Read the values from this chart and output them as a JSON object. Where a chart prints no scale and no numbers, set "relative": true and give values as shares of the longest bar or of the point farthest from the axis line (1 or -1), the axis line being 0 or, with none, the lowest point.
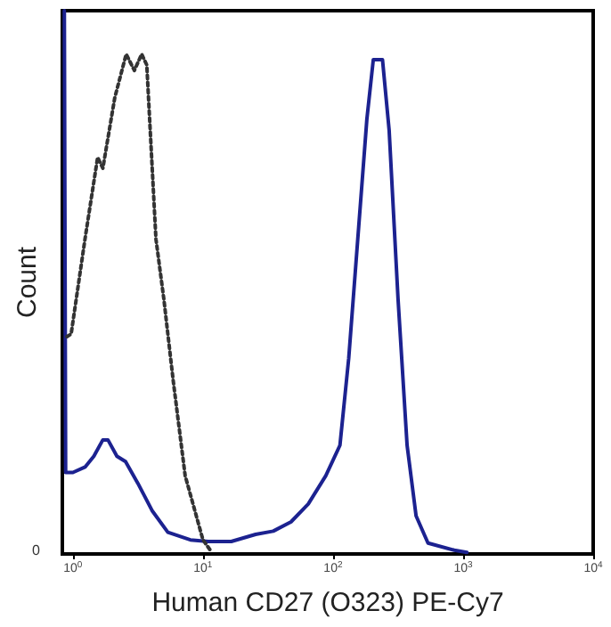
{
  "chart_data": {
    "type": "line",
    "xlabel": "Human CD27 (O323) PE-Cy7",
    "ylabel": "Count",
    "relative": true,
    "log": "x",
    "xlim": [
      0.83,
      10000
    ],
    "xticks": [
      {
        "value": 1,
        "label": "10$^{0}$"
      },
      {
        "value": 10,
        "label": "10$^{1}$"
      },
      {
        "value": 100,
        "label": "10$^{2}$"
      },
      {
        "value": 1000,
        "label": "10$^{3}$"
      },
      {
        "value": 10000,
        "label": "10$^{4}$"
      }
    ],
    "grid": false,
    "marker": "none",
    "annotations": [
      "0"
    ],
    "series": [
      {
        "color": "#1c2290",
        "line_style": "solid",
        "x": [
          0.86,
          0.88,
          1.0,
          1.24,
          1.45,
          1.7,
          1.86,
          2.18,
          2.54,
          3.16,
          4.06,
          5.37,
          8.0,
          11,
          16.5,
          25.4,
          34.7,
          47.5,
          64.5,
          88,
          113,
          132,
          155,
          182,
          204,
          240,
          270,
          316,
          371,
          435,
          537,
          855,
          1070
        ],
        "values": [
          1.0,
          0.15,
          0.15,
          0.16,
          0.18,
          0.21,
          0.21,
          0.18,
          0.17,
          0.13,
          0.08,
          0.04,
          0.026,
          0.023,
          0.023,
          0.036,
          0.042,
          0.059,
          0.092,
          0.144,
          0.2,
          0.36,
          0.58,
          0.8,
          0.91,
          0.91,
          0.78,
          0.47,
          0.2,
          0.07,
          0.02,
          0.007,
          0.003
        ]
      },
      {
        "color": "#333333",
        "line_style": "dotted",
        "x": [
          0.9,
          0.97,
          1.24,
          1.55,
          1.7,
          2.1,
          2.57,
          2.97,
          3.38,
          3.7,
          4.35,
          5.0,
          5.9,
          7.3,
          10,
          11.7
        ],
        "values": [
          0.4,
          0.405,
          0.58,
          0.73,
          0.71,
          0.84,
          0.92,
          0.89,
          0.92,
          0.9,
          0.58,
          0.47,
          0.32,
          0.144,
          0.026,
          0.003
        ]
      }
    ]
  }
}
